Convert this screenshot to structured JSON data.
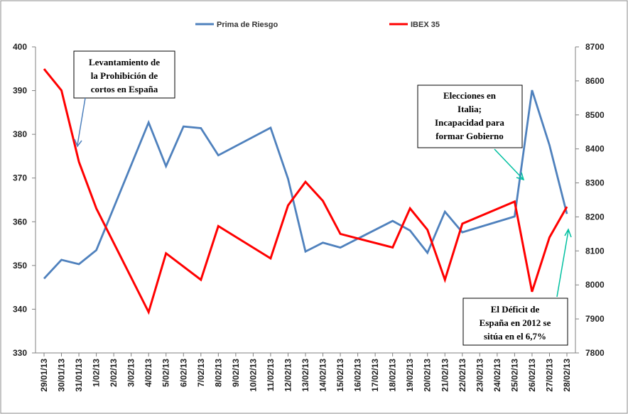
{
  "chart_data": {
    "type": "line",
    "title": "",
    "xlabel": "",
    "ylabel_left": "",
    "ylabel_right": "",
    "grid": false,
    "legend_position": "top",
    "categories": [
      "29/01/13",
      "30/01/13",
      "31/01/13",
      "1/02/13",
      "2/02/13",
      "3/02/13",
      "4/02/13",
      "5/02/13",
      "6/02/13",
      "7/02/13",
      "8/02/13",
      "9/02/13",
      "10/02/13",
      "11/02/13",
      "12/02/13",
      "13/02/13",
      "14/02/13",
      "15/02/13",
      "16/02/13",
      "17/02/13",
      "18/02/13",
      "19/02/13",
      "20/02/13",
      "21/02/13",
      "22/02/13",
      "23/02/13",
      "24/02/13",
      "25/02/13",
      "26/02/13",
      "27/02/13",
      "28/02/13"
    ],
    "ylim_left": [
      330,
      400
    ],
    "ylim_right": [
      7800,
      8700
    ],
    "yticks_left": [
      330,
      340,
      350,
      360,
      370,
      380,
      390,
      400
    ],
    "yticks_right": [
      7800,
      7900,
      8000,
      8100,
      8200,
      8300,
      8400,
      8500,
      8600,
      8700
    ],
    "series": [
      {
        "name": "Prima de Riesgo",
        "axis": "left",
        "color": "#4F81BD",
        "values": [
          347,
          351.3,
          350.3,
          353.5,
          null,
          null,
          382.7,
          372.7,
          381.8,
          381.4,
          375.2,
          null,
          null,
          381.5,
          369.8,
          353.2,
          355.2,
          354.1,
          null,
          null,
          360.2,
          358,
          352.9,
          362.3,
          357.6,
          null,
          null,
          361.2,
          390.1,
          377.5,
          361.8
        ]
      },
      {
        "name": "IBEX 35",
        "axis": "right",
        "color": "#FF0000",
        "values": [
          8635,
          8572,
          8362,
          8225,
          null,
          null,
          7920,
          8093,
          null,
          8015,
          8173,
          null,
          null,
          8078,
          8234,
          8303,
          8247,
          8150,
          null,
          null,
          8110,
          8225,
          8162,
          8015,
          8180,
          null,
          null,
          8245,
          7980,
          8140,
          8230
        ]
      }
    ],
    "annotations": [
      {
        "id": "prohibicion",
        "lines": [
          "Levantamiento de",
          "la Prohibición de",
          "cortos en España"
        ],
        "arrow_color": "#4F81BD"
      },
      {
        "id": "elecciones",
        "lines": [
          "Elecciones en",
          "Italia;",
          "Incapacidad para",
          "formar Gobierno"
        ],
        "arrow_color": "#00C0A0"
      },
      {
        "id": "deficit",
        "lines": [
          "El Déficit de",
          "España en 2012 se",
          "sitúa en el 6,7%"
        ],
        "arrow_color": "#00C0A0"
      }
    ]
  }
}
